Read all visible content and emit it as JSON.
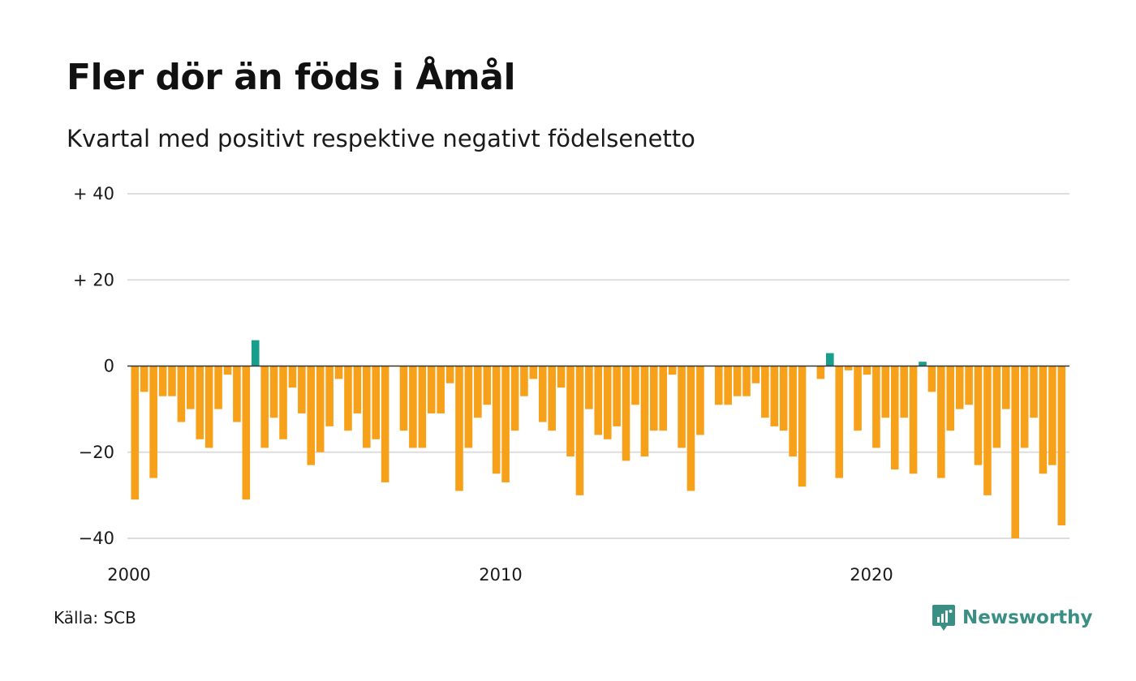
{
  "title": "Fler dör än föds i Åmål",
  "subtitle": "Kvartal med positivt respektive negativt födelsenetto",
  "source": "Källa: SCB",
  "brand": "Newsworthy",
  "colors": {
    "positive": "#1a9e8c",
    "negative": "#f7a11a",
    "grid": "#dddddd",
    "zero_line": "#333333",
    "brand": "#3a8f85"
  },
  "chart_data": {
    "type": "bar",
    "start": "2000 Q1",
    "x_ticks": [
      "2000",
      "2010",
      "2020"
    ],
    "y_ticks": [
      {
        "value": 40,
        "label": "+ 40"
      },
      {
        "value": 20,
        "label": "+ 20"
      },
      {
        "value": 0,
        "label": "0"
      },
      {
        "value": -20,
        "label": "−20"
      },
      {
        "value": -40,
        "label": "−40"
      }
    ],
    "ylim": [
      -40,
      40
    ],
    "grid": true,
    "values": [
      -31,
      -6,
      -26,
      -7,
      -7,
      -13,
      -10,
      -17,
      -19,
      -10,
      -2,
      -13,
      -31,
      6,
      -19,
      -12,
      -17,
      -5,
      -11,
      -23,
      -20,
      -14,
      -3,
      -15,
      -11,
      -19,
      -17,
      -27,
      0,
      -15,
      -19,
      -19,
      -11,
      -11,
      -4,
      -29,
      -19,
      -12,
      -9,
      -25,
      -27,
      -15,
      -7,
      -3,
      -13,
      -15,
      -5,
      -21,
      -30,
      -10,
      -16,
      -17,
      -14,
      -22,
      -9,
      -21,
      -15,
      -15,
      -2,
      -19,
      -29,
      -16,
      0,
      -9,
      -9,
      -7,
      -7,
      -4,
      -12,
      -14,
      -15,
      -21,
      -28,
      0,
      -3,
      3,
      -26,
      -1,
      -15,
      -2,
      -19,
      -12,
      -24,
      -12,
      -25,
      1,
      -6,
      -26,
      -15,
      -10,
      -9,
      -23,
      -30,
      -19,
      -10,
      -40,
      -19,
      -12,
      -25,
      -23,
      -37
    ]
  }
}
